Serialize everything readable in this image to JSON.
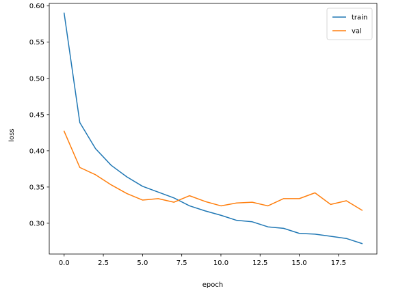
{
  "chart_data": {
    "type": "line",
    "title": "",
    "xlabel": "epoch",
    "ylabel": "loss",
    "xlim": [
      -0.95,
      19.95
    ],
    "ylim": [
      0.2575,
      0.6035
    ],
    "xticks": [
      0.0,
      2.5,
      5.0,
      7.5,
      10.0,
      12.5,
      15.0,
      17.5
    ],
    "xtick_labels": [
      "0.0",
      "2.5",
      "5.0",
      "7.5",
      "10.0",
      "12.5",
      "15.0",
      "17.5"
    ],
    "yticks": [
      0.3,
      0.35,
      0.4,
      0.45,
      0.5,
      0.55,
      0.6
    ],
    "ytick_labels": [
      "0.30",
      "0.35",
      "0.40",
      "0.45",
      "0.50",
      "0.55",
      "0.60"
    ],
    "grid": false,
    "legend_position": "top-right",
    "x": [
      0,
      1,
      2,
      3,
      4,
      5,
      6,
      7,
      8,
      9,
      10,
      11,
      12,
      13,
      14,
      15,
      16,
      17,
      18,
      19
    ],
    "series": [
      {
        "name": "train",
        "color": "#1f77b4",
        "values": [
          0.59,
          0.439,
          0.403,
          0.38,
          0.364,
          0.351,
          0.343,
          0.335,
          0.324,
          0.317,
          0.311,
          0.304,
          0.302,
          0.295,
          0.293,
          0.286,
          0.285,
          0.282,
          0.279,
          0.272
        ]
      },
      {
        "name": "val",
        "color": "#ff7f0e",
        "values": [
          0.427,
          0.377,
          0.367,
          0.353,
          0.341,
          0.332,
          0.334,
          0.329,
          0.338,
          0.33,
          0.324,
          0.328,
          0.329,
          0.324,
          0.334,
          0.334,
          0.342,
          0.326,
          0.331,
          0.318
        ]
      }
    ]
  }
}
